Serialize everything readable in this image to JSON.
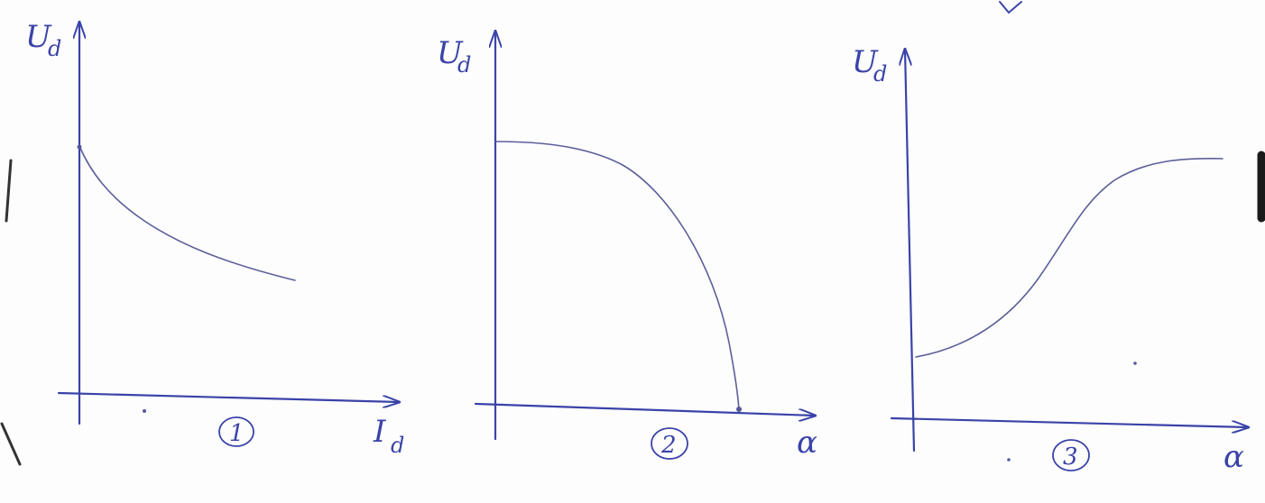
{
  "graphs": [
    {
      "id": "1",
      "y_label": "U",
      "y_label_sub": "d",
      "x_label": "I",
      "x_label_sub": "d",
      "number": "1",
      "curve": "decreasing-convex"
    },
    {
      "id": "2",
      "y_label": "U",
      "y_label_sub": "d",
      "x_label": "α",
      "number": "2",
      "curve": "flat-then-steep-drop"
    },
    {
      "id": "3",
      "y_label": "U",
      "y_label_sub": "d",
      "x_label": "α",
      "number": "3",
      "curve": "s-shaped-rising"
    }
  ],
  "colors": {
    "ink": "#3a43a8",
    "curve": "#5d5f9a",
    "paper": "#fdfdfd"
  }
}
